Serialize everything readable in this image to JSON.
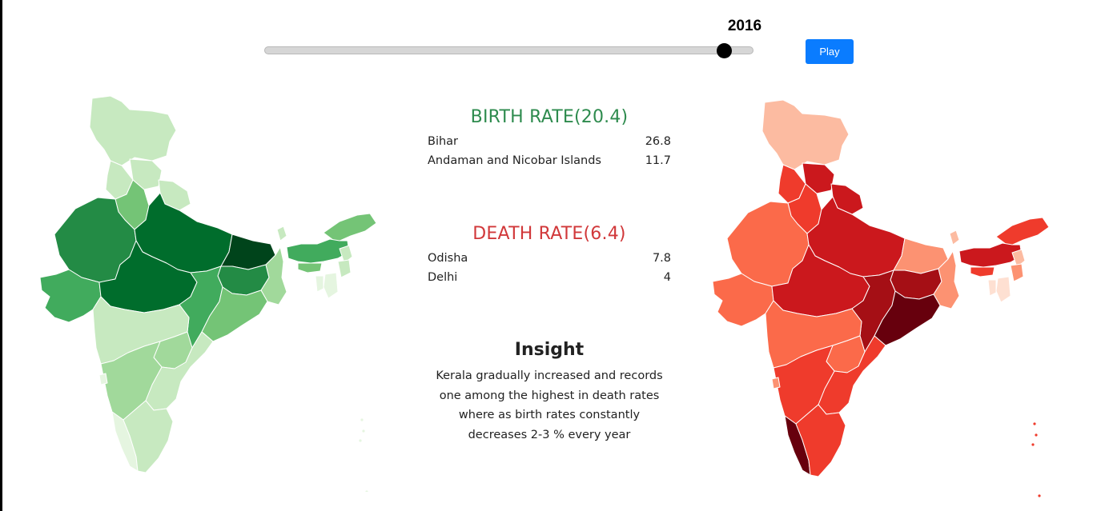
{
  "slider": {
    "year": "2016",
    "position_fraction": 0.94,
    "play_label": "Play"
  },
  "birth": {
    "title": "BIRTH RATE(20.4)",
    "highest": {
      "state": "Bihar",
      "value": "26.8"
    },
    "lowest": {
      "state": "Andaman and Nicobar Islands",
      "value": "11.7"
    }
  },
  "death": {
    "title": "DEATH RATE(6.4)",
    "highest": {
      "state": "Odisha",
      "value": "7.8"
    },
    "lowest": {
      "state": "Delhi",
      "value": "4"
    }
  },
  "insight": {
    "title": "Insight",
    "text": "Kerala gradually increased and records one among the highest in death rates where as birth rates constantly decreases 2-3 % every year"
  },
  "colors": {
    "birth_scale": [
      "#e5f5e0",
      "#c7e9c0",
      "#a1d99b",
      "#74c476",
      "#41ab5d",
      "#238b45",
      "#006d2c",
      "#00441b"
    ],
    "death_scale": [
      "#fee0d2",
      "#fcbba1",
      "#fc9272",
      "#fb6a4a",
      "#ef3b2c",
      "#cb181d",
      "#a50f15",
      "#67000d"
    ],
    "play_button": "#0a7cff"
  },
  "maps": {
    "birth": {
      "regions": [
        {
          "name": "jammu-kashmir",
          "level": 1
        },
        {
          "name": "himachal",
          "level": 1
        },
        {
          "name": "punjab",
          "level": 1
        },
        {
          "name": "uttarakhand",
          "level": 1
        },
        {
          "name": "haryana",
          "level": 3
        },
        {
          "name": "rajasthan",
          "level": 5
        },
        {
          "name": "uttar-pradesh",
          "level": 6
        },
        {
          "name": "bihar",
          "level": 7
        },
        {
          "name": "gujarat",
          "level": 4
        },
        {
          "name": "madhya-pradesh",
          "level": 6
        },
        {
          "name": "jharkhand",
          "level": 5
        },
        {
          "name": "west-bengal",
          "level": 2
        },
        {
          "name": "chhattisgarh",
          "level": 4
        },
        {
          "name": "odisha",
          "level": 3
        },
        {
          "name": "maharashtra",
          "level": 1
        },
        {
          "name": "telangana",
          "level": 2
        },
        {
          "name": "andhra-pradesh",
          "level": 1
        },
        {
          "name": "karnataka",
          "level": 2
        },
        {
          "name": "goa",
          "level": 0
        },
        {
          "name": "kerala",
          "level": 0
        },
        {
          "name": "tamil-nadu",
          "level": 1
        },
        {
          "name": "sikkim",
          "level": 1
        },
        {
          "name": "arunachal",
          "level": 3
        },
        {
          "name": "assam",
          "level": 4
        },
        {
          "name": "meghalaya",
          "level": 3
        },
        {
          "name": "nagaland",
          "level": 1
        },
        {
          "name": "manipur",
          "level": 1
        },
        {
          "name": "mizoram",
          "level": 0
        },
        {
          "name": "tripura",
          "level": 0
        }
      ]
    },
    "death": {
      "regions": [
        {
          "name": "jammu-kashmir",
          "level": 1
        },
        {
          "name": "himachal",
          "level": 5
        },
        {
          "name": "punjab",
          "level": 4
        },
        {
          "name": "uttarakhand",
          "level": 5
        },
        {
          "name": "haryana",
          "level": 4
        },
        {
          "name": "rajasthan",
          "level": 3
        },
        {
          "name": "uttar-pradesh",
          "level": 5
        },
        {
          "name": "bihar",
          "level": 2
        },
        {
          "name": "gujarat",
          "level": 3
        },
        {
          "name": "madhya-pradesh",
          "level": 5
        },
        {
          "name": "jharkhand",
          "level": 6
        },
        {
          "name": "west-bengal",
          "level": 2
        },
        {
          "name": "chhattisgarh",
          "level": 6
        },
        {
          "name": "odisha",
          "level": 7
        },
        {
          "name": "maharashtra",
          "level": 3
        },
        {
          "name": "telangana",
          "level": 3
        },
        {
          "name": "andhra-pradesh",
          "level": 4
        },
        {
          "name": "karnataka",
          "level": 4
        },
        {
          "name": "goa",
          "level": 2
        },
        {
          "name": "kerala",
          "level": 7
        },
        {
          "name": "tamil-nadu",
          "level": 4
        },
        {
          "name": "sikkim",
          "level": 1
        },
        {
          "name": "arunachal",
          "level": 4
        },
        {
          "name": "assam",
          "level": 5
        },
        {
          "name": "meghalaya",
          "level": 4
        },
        {
          "name": "nagaland",
          "level": 1
        },
        {
          "name": "manipur",
          "level": 2
        },
        {
          "name": "mizoram",
          "level": 0
        },
        {
          "name": "tripura",
          "level": 0
        }
      ]
    }
  }
}
